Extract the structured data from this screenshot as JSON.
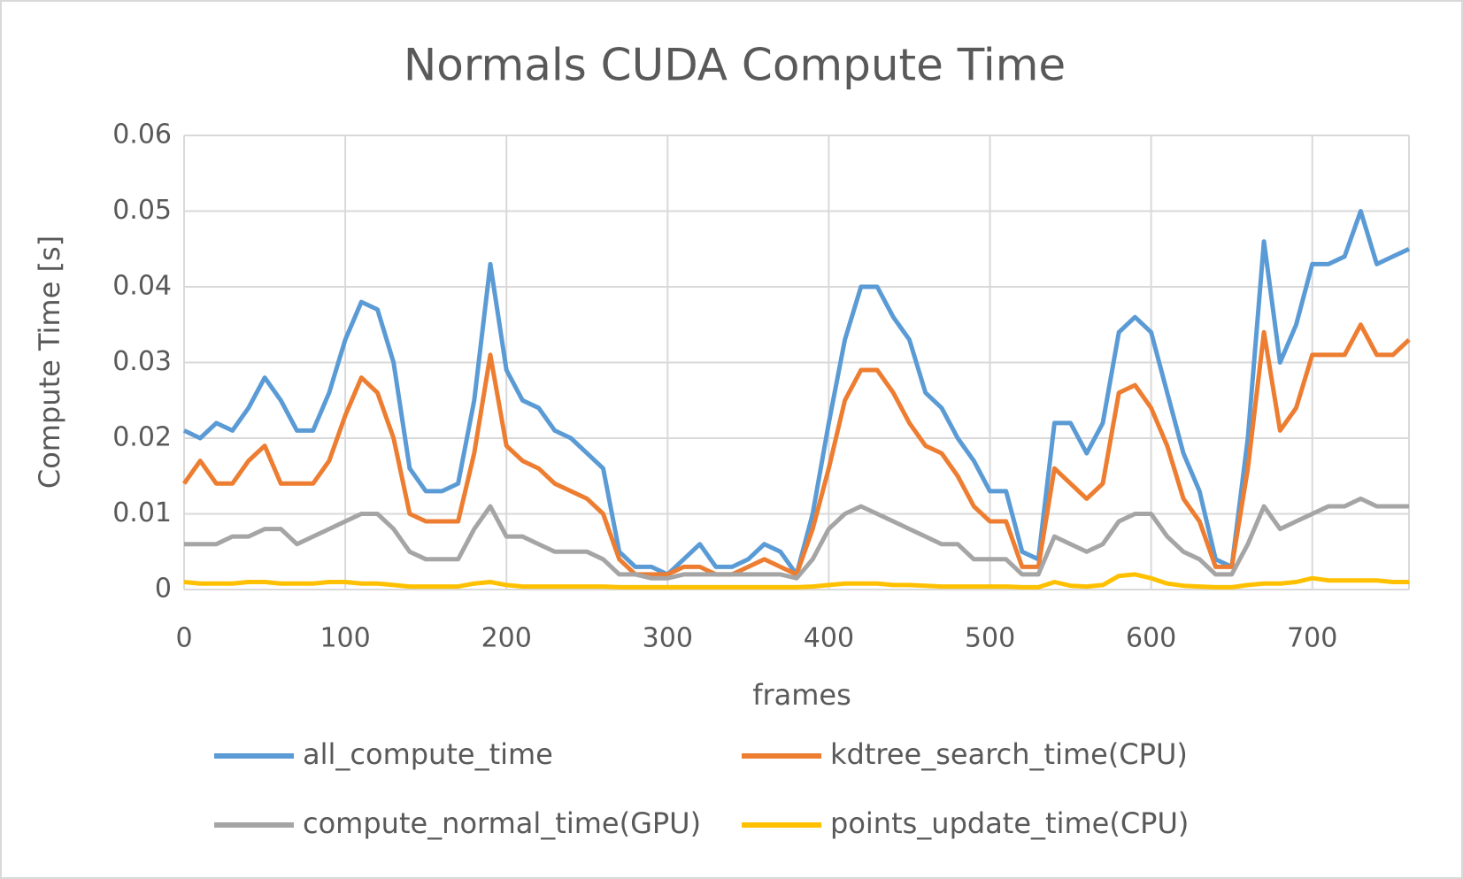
{
  "chart_data": {
    "type": "line",
    "title": "Normals CUDA Compute Time",
    "x_label": "frames",
    "y_label": "Compute Time [s]",
    "x": [
      0,
      10,
      20,
      30,
      40,
      50,
      60,
      70,
      80,
      90,
      100,
      110,
      120,
      130,
      140,
      150,
      160,
      170,
      180,
      190,
      200,
      210,
      220,
      230,
      240,
      250,
      260,
      270,
      280,
      290,
      300,
      310,
      320,
      330,
      340,
      350,
      360,
      370,
      380,
      390,
      400,
      410,
      420,
      430,
      440,
      450,
      460,
      470,
      480,
      490,
      500,
      510,
      520,
      530,
      540,
      550,
      560,
      570,
      580,
      590,
      600,
      610,
      620,
      630,
      640,
      650,
      660,
      670,
      680,
      690,
      700,
      710,
      720,
      730,
      740,
      750,
      760
    ],
    "series": [
      {
        "name": "all_compute_time",
        "color": "#5b9bd5",
        "values": [
          0.021,
          0.02,
          0.022,
          0.021,
          0.024,
          0.028,
          0.025,
          0.021,
          0.021,
          0.026,
          0.033,
          0.038,
          0.037,
          0.03,
          0.016,
          0.013,
          0.013,
          0.014,
          0.025,
          0.043,
          0.029,
          0.025,
          0.024,
          0.021,
          0.02,
          0.018,
          0.016,
          0.005,
          0.003,
          0.003,
          0.002,
          0.004,
          0.006,
          0.003,
          0.003,
          0.004,
          0.006,
          0.005,
          0.002,
          0.01,
          0.022,
          0.033,
          0.04,
          0.04,
          0.036,
          0.033,
          0.026,
          0.024,
          0.02,
          0.017,
          0.013,
          0.013,
          0.005,
          0.004,
          0.022,
          0.022,
          0.018,
          0.022,
          0.034,
          0.036,
          0.034,
          0.026,
          0.018,
          0.013,
          0.004,
          0.003,
          0.02,
          0.046,
          0.03,
          0.035,
          0.043,
          0.043,
          0.044,
          0.05,
          0.043,
          0.044,
          0.045
        ]
      },
      {
        "name": "kdtree_search_time(CPU)",
        "color": "#ed7d31",
        "values": [
          0.014,
          0.017,
          0.014,
          0.014,
          0.017,
          0.019,
          0.014,
          0.014,
          0.014,
          0.017,
          0.023,
          0.028,
          0.026,
          0.02,
          0.01,
          0.009,
          0.009,
          0.009,
          0.018,
          0.031,
          0.019,
          0.017,
          0.016,
          0.014,
          0.013,
          0.012,
          0.01,
          0.004,
          0.002,
          0.002,
          0.002,
          0.003,
          0.003,
          0.002,
          0.002,
          0.003,
          0.004,
          0.003,
          0.002,
          0.008,
          0.016,
          0.025,
          0.029,
          0.029,
          0.026,
          0.022,
          0.019,
          0.018,
          0.015,
          0.011,
          0.009,
          0.009,
          0.003,
          0.003,
          0.016,
          0.014,
          0.012,
          0.014,
          0.026,
          0.027,
          0.024,
          0.019,
          0.012,
          0.009,
          0.003,
          0.003,
          0.016,
          0.034,
          0.021,
          0.024,
          0.031,
          0.031,
          0.031,
          0.035,
          0.031,
          0.031,
          0.033
        ]
      },
      {
        "name": "compute_normal_time(GPU)",
        "color": "#a5a5a5",
        "values": [
          0.006,
          0.006,
          0.006,
          0.007,
          0.007,
          0.008,
          0.008,
          0.006,
          0.007,
          0.008,
          0.009,
          0.01,
          0.01,
          0.008,
          0.005,
          0.004,
          0.004,
          0.004,
          0.008,
          0.011,
          0.007,
          0.007,
          0.006,
          0.005,
          0.005,
          0.005,
          0.004,
          0.002,
          0.002,
          0.0015,
          0.0015,
          0.002,
          0.002,
          0.002,
          0.002,
          0.002,
          0.002,
          0.002,
          0.0015,
          0.004,
          0.008,
          0.01,
          0.011,
          0.01,
          0.009,
          0.008,
          0.007,
          0.006,
          0.006,
          0.004,
          0.004,
          0.004,
          0.002,
          0.002,
          0.007,
          0.006,
          0.005,
          0.006,
          0.009,
          0.01,
          0.01,
          0.007,
          0.005,
          0.004,
          0.002,
          0.002,
          0.006,
          0.011,
          0.008,
          0.009,
          0.01,
          0.011,
          0.011,
          0.012,
          0.011,
          0.011,
          0.011
        ]
      },
      {
        "name": "points_update_time(CPU)",
        "color": "#ffc000",
        "values": [
          0.001,
          0.0008,
          0.0008,
          0.0008,
          0.001,
          0.001,
          0.0008,
          0.0008,
          0.0008,
          0.001,
          0.001,
          0.0008,
          0.0008,
          0.0006,
          0.0004,
          0.0004,
          0.0004,
          0.0004,
          0.0008,
          0.001,
          0.0006,
          0.0004,
          0.0004,
          0.0004,
          0.0004,
          0.0004,
          0.0004,
          0.0003,
          0.0003,
          0.0003,
          0.0003,
          0.0003,
          0.0003,
          0.0003,
          0.0003,
          0.0003,
          0.0003,
          0.0003,
          0.0003,
          0.0004,
          0.0006,
          0.0008,
          0.0008,
          0.0008,
          0.0006,
          0.0006,
          0.0005,
          0.0004,
          0.0004,
          0.0004,
          0.0004,
          0.0004,
          0.0003,
          0.0003,
          0.001,
          0.0005,
          0.0004,
          0.0006,
          0.0018,
          0.002,
          0.0015,
          0.0008,
          0.0005,
          0.0004,
          0.0003,
          0.0003,
          0.0006,
          0.0008,
          0.0008,
          0.001,
          0.0015,
          0.0012,
          0.0012,
          0.0012,
          0.0012,
          0.001,
          0.001
        ]
      }
    ],
    "xlim": [
      0,
      760
    ],
    "xticks": [
      0,
      100,
      200,
      300,
      400,
      500,
      600,
      700
    ],
    "ylim": [
      0,
      0.06
    ],
    "yticks": [
      0,
      0.01,
      0.02,
      0.03,
      0.04,
      0.05,
      0.06
    ],
    "grid": true,
    "legend": "bottom"
  }
}
